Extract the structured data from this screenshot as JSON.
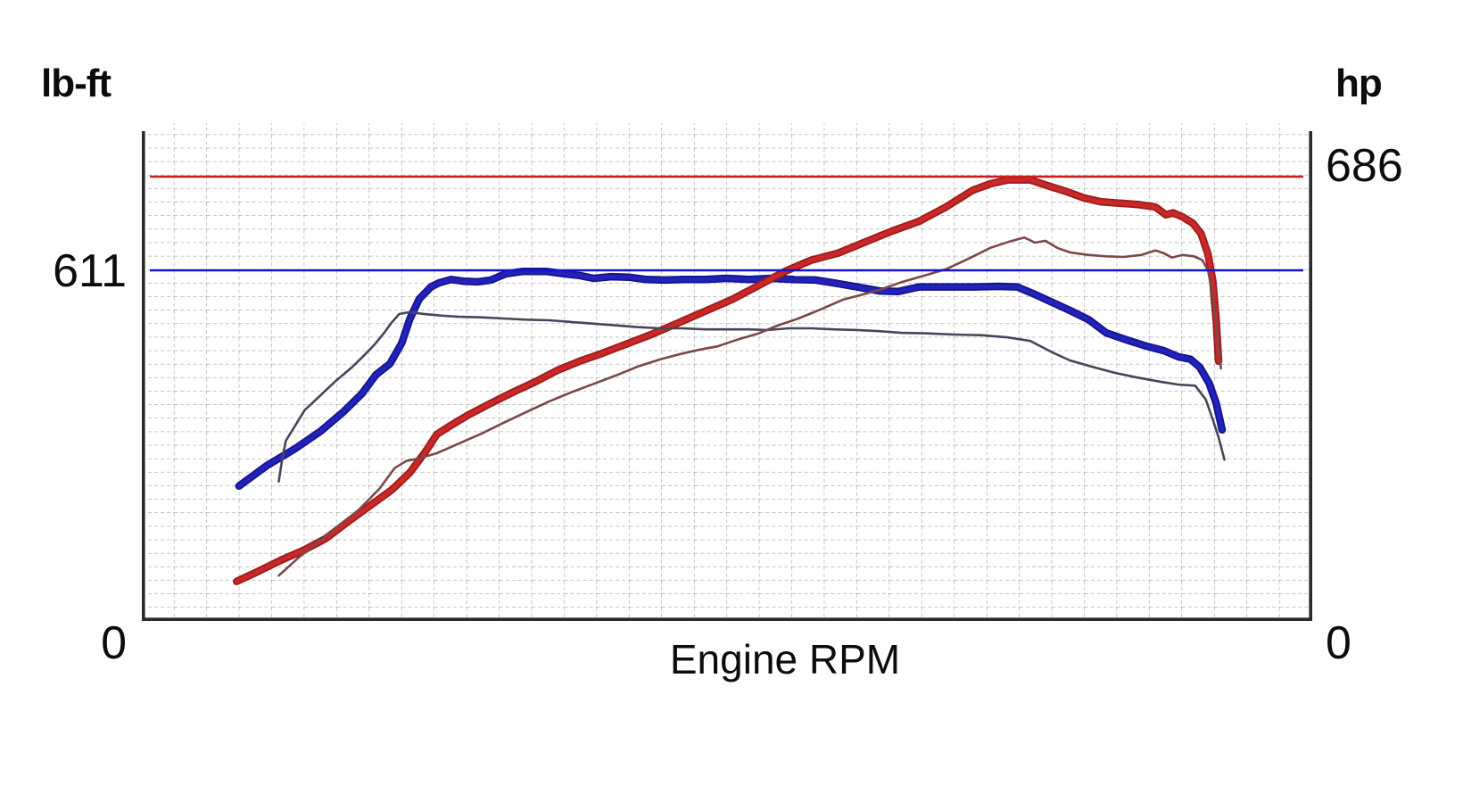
{
  "chart": {
    "left_unit": "lb-ft",
    "right_unit": "hp",
    "left_peak": "611",
    "left_zero": "0",
    "right_peak": "686",
    "right_zero": "0",
    "x_title": "Engine RPM"
  },
  "colors": {
    "torque_primary": "#2222bb",
    "torque_primary_edge": "#14148c",
    "torque_secondary": "#46465a",
    "hp_primary": "#cc2727",
    "hp_primary_edge": "#991c1c",
    "hp_secondary": "#7c4848",
    "torque_reference_line": "#1414cc",
    "hp_reference_line": "#cc1c1c",
    "grid": "#9e9e9e",
    "axis_border": "#2a2a2a",
    "text": "#0c0c0c"
  },
  "chart_data": {
    "type": "line",
    "title": "",
    "xlabel": "Engine RPM",
    "x_tick_labels": [],
    "left_axis": {
      "unit": "lb-ft",
      "ticks": [
        0,
        611
      ]
    },
    "right_axis": {
      "unit": "hp",
      "ticks": [
        0,
        686
      ]
    },
    "grid": true,
    "legend": false,
    "y_scales": {
      "lb-ft": {
        "max_value": 611,
        "max_y_frac": 0.2982
      },
      "hp": {
        "max_value": 686,
        "max_y_frac": 0.1107
      }
    },
    "reference_lines": [
      {
        "name": "peak-hp-line",
        "axis": "hp",
        "value": 686,
        "color": "#cc1c1c",
        "width": 2.4
      },
      {
        "name": "peak-torque-line",
        "axis": "lb-ft",
        "value": 611,
        "color": "#1414cc",
        "width": 2.6
      }
    ],
    "series": [
      {
        "name": "torque_primary",
        "unit": "lb-ft",
        "color": "#2222bb",
        "edge_color": "#14148c",
        "width": 5,
        "edge_width": 8.5,
        "points": [
          [
            0.083,
            235
          ],
          [
            0.107,
            271
          ],
          [
            0.13,
            299
          ],
          [
            0.153,
            331
          ],
          [
            0.172,
            364
          ],
          [
            0.188,
            396
          ],
          [
            0.2,
            429
          ],
          [
            0.212,
            448
          ],
          [
            0.222,
            484
          ],
          [
            0.229,
            526
          ],
          [
            0.237,
            561
          ],
          [
            0.247,
            582
          ],
          [
            0.254,
            589
          ],
          [
            0.264,
            595
          ],
          [
            0.275,
            592
          ],
          [
            0.287,
            591
          ],
          [
            0.298,
            594
          ],
          [
            0.311,
            605
          ],
          [
            0.325,
            609
          ],
          [
            0.346,
            609
          ],
          [
            0.361,
            605
          ],
          [
            0.374,
            602
          ],
          [
            0.386,
            597
          ],
          [
            0.401,
            600
          ],
          [
            0.416,
            599
          ],
          [
            0.431,
            595
          ],
          [
            0.447,
            594
          ],
          [
            0.462,
            595
          ],
          [
            0.481,
            595
          ],
          [
            0.5,
            597
          ],
          [
            0.519,
            595
          ],
          [
            0.538,
            597
          ],
          [
            0.557,
            595
          ],
          [
            0.576,
            594
          ],
          [
            0.591,
            589
          ],
          [
            0.611,
            582
          ],
          [
            0.63,
            575
          ],
          [
            0.646,
            574
          ],
          [
            0.664,
            582
          ],
          [
            0.687,
            582
          ],
          [
            0.71,
            582
          ],
          [
            0.732,
            583
          ],
          [
            0.748,
            582
          ],
          [
            0.763,
            569
          ],
          [
            0.778,
            555
          ],
          [
            0.793,
            541
          ],
          [
            0.809,
            525
          ],
          [
            0.824,
            502
          ],
          [
            0.841,
            490
          ],
          [
            0.858,
            479
          ],
          [
            0.873,
            471
          ],
          [
            0.886,
            460
          ],
          [
            0.896,
            456
          ],
          [
            0.904,
            442
          ],
          [
            0.912,
            414
          ],
          [
            0.918,
            379
          ],
          [
            0.923,
            333
          ]
        ]
      },
      {
        "name": "hp_primary",
        "unit": "hp",
        "color": "#cc2727",
        "edge_color": "#991c1c",
        "width": 5,
        "edge_width": 8.5,
        "points": [
          [
            0.081,
            61
          ],
          [
            0.1,
            77
          ],
          [
            0.119,
            94
          ],
          [
            0.138,
            109
          ],
          [
            0.157,
            127
          ],
          [
            0.176,
            153
          ],
          [
            0.195,
            178
          ],
          [
            0.214,
            203
          ],
          [
            0.229,
            229
          ],
          [
            0.243,
            263
          ],
          [
            0.252,
            288
          ],
          [
            0.264,
            302
          ],
          [
            0.279,
            318
          ],
          [
            0.298,
            336
          ],
          [
            0.317,
            353
          ],
          [
            0.336,
            369
          ],
          [
            0.355,
            387
          ],
          [
            0.374,
            401
          ],
          [
            0.393,
            413
          ],
          [
            0.412,
            426
          ],
          [
            0.435,
            442
          ],
          [
            0.458,
            460
          ],
          [
            0.481,
            478
          ],
          [
            0.504,
            496
          ],
          [
            0.527,
            518
          ],
          [
            0.551,
            541
          ],
          [
            0.572,
            557
          ],
          [
            0.595,
            568
          ],
          [
            0.618,
            585
          ],
          [
            0.641,
            602
          ],
          [
            0.664,
            617
          ],
          [
            0.687,
            639
          ],
          [
            0.71,
            665
          ],
          [
            0.725,
            675
          ],
          [
            0.74,
            681
          ],
          [
            0.759,
            681
          ],
          [
            0.774,
            672
          ],
          [
            0.79,
            663
          ],
          [
            0.805,
            653
          ],
          [
            0.82,
            647
          ],
          [
            0.835,
            645
          ],
          [
            0.851,
            643
          ],
          [
            0.866,
            639
          ],
          [
            0.875,
            627
          ],
          [
            0.881,
            630
          ],
          [
            0.889,
            624
          ],
          [
            0.898,
            614
          ],
          [
            0.905,
            598
          ],
          [
            0.911,
            566
          ],
          [
            0.915,
            525
          ],
          [
            0.918,
            463
          ],
          [
            0.92,
            401
          ]
        ]
      },
      {
        "name": "torque_secondary",
        "unit": "lb-ft",
        "color": "#46465a",
        "width": 2.6,
        "points": [
          [
            0.117,
            243
          ],
          [
            0.12,
            283
          ],
          [
            0.123,
            314
          ],
          [
            0.13,
            337
          ],
          [
            0.139,
            367
          ],
          [
            0.152,
            392
          ],
          [
            0.165,
            417
          ],
          [
            0.18,
            443
          ],
          [
            0.191,
            465
          ],
          [
            0.199,
            482
          ],
          [
            0.207,
            502
          ],
          [
            0.213,
            519
          ],
          [
            0.22,
            535
          ],
          [
            0.229,
            538
          ],
          [
            0.241,
            535
          ],
          [
            0.256,
            532
          ],
          [
            0.271,
            530
          ],
          [
            0.29,
            529
          ],
          [
            0.309,
            527
          ],
          [
            0.328,
            525
          ],
          [
            0.348,
            524
          ],
          [
            0.367,
            521
          ],
          [
            0.386,
            518
          ],
          [
            0.405,
            515
          ],
          [
            0.424,
            512
          ],
          [
            0.443,
            510
          ],
          [
            0.462,
            510
          ],
          [
            0.481,
            508
          ],
          [
            0.5,
            508
          ],
          [
            0.519,
            508
          ],
          [
            0.534,
            507
          ],
          [
            0.553,
            510
          ],
          [
            0.572,
            510
          ],
          [
            0.591,
            508
          ],
          [
            0.611,
            507
          ],
          [
            0.63,
            505
          ],
          [
            0.649,
            502
          ],
          [
            0.671,
            501
          ],
          [
            0.694,
            499
          ],
          [
            0.717,
            498
          ],
          [
            0.74,
            494
          ],
          [
            0.759,
            488
          ],
          [
            0.778,
            468
          ],
          [
            0.793,
            454
          ],
          [
            0.812,
            443
          ],
          [
            0.832,
            432
          ],
          [
            0.851,
            424
          ],
          [
            0.87,
            417
          ],
          [
            0.885,
            412
          ],
          [
            0.9,
            410
          ],
          [
            0.909,
            386
          ],
          [
            0.915,
            351
          ],
          [
            0.92,
            320
          ],
          [
            0.925,
            281
          ]
        ]
      },
      {
        "name": "hp_secondary",
        "unit": "hp",
        "color": "#7c4848",
        "width": 2.6,
        "points": [
          [
            0.117,
            70
          ],
          [
            0.134,
            98
          ],
          [
            0.152,
            123
          ],
          [
            0.168,
            147
          ],
          [
            0.185,
            171
          ],
          [
            0.203,
            204
          ],
          [
            0.216,
            236
          ],
          [
            0.226,
            247
          ],
          [
            0.237,
            251
          ],
          [
            0.252,
            259
          ],
          [
            0.271,
            274
          ],
          [
            0.29,
            289
          ],
          [
            0.309,
            306
          ],
          [
            0.328,
            322
          ],
          [
            0.348,
            339
          ],
          [
            0.367,
            353
          ],
          [
            0.386,
            366
          ],
          [
            0.405,
            379
          ],
          [
            0.424,
            393
          ],
          [
            0.443,
            404
          ],
          [
            0.46,
            412
          ],
          [
            0.477,
            419
          ],
          [
            0.492,
            424
          ],
          [
            0.51,
            435
          ],
          [
            0.527,
            444
          ],
          [
            0.543,
            456
          ],
          [
            0.561,
            467
          ],
          [
            0.58,
            481
          ],
          [
            0.599,
            496
          ],
          [
            0.614,
            503
          ],
          [
            0.63,
            511
          ],
          [
            0.649,
            523
          ],
          [
            0.668,
            533
          ],
          [
            0.687,
            543
          ],
          [
            0.706,
            559
          ],
          [
            0.725,
            576
          ],
          [
            0.74,
            585
          ],
          [
            0.754,
            592
          ],
          [
            0.763,
            584
          ],
          [
            0.772,
            587
          ],
          [
            0.782,
            576
          ],
          [
            0.793,
            569
          ],
          [
            0.809,
            565
          ],
          [
            0.824,
            563
          ],
          [
            0.839,
            562
          ],
          [
            0.854,
            565
          ],
          [
            0.866,
            572
          ],
          [
            0.873,
            568
          ],
          [
            0.88,
            561
          ],
          [
            0.889,
            565
          ],
          [
            0.899,
            563
          ],
          [
            0.906,
            557
          ],
          [
            0.911,
            541
          ],
          [
            0.915,
            504
          ],
          [
            0.919,
            442
          ],
          [
            0.922,
            390
          ]
        ]
      }
    ]
  }
}
